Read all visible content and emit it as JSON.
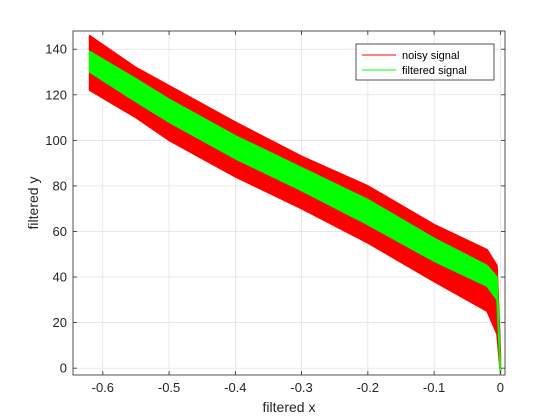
{
  "chart_data": {
    "type": "line",
    "title": "",
    "xlabel": "filtered x",
    "ylabel": "filtered y",
    "xlim": [
      -0.645,
      0.007
    ],
    "ylim": [
      -3,
      148
    ],
    "xticks": [
      -0.6,
      -0.5,
      -0.4,
      -0.3,
      -0.2,
      -0.1,
      0
    ],
    "xtick_labels": [
      "-0.6",
      "-0.5",
      "-0.4",
      "-0.3",
      "-0.2",
      "-0.1",
      "0"
    ],
    "yticks": [
      0,
      20,
      40,
      60,
      80,
      100,
      120,
      140
    ],
    "ytick_labels": [
      "0",
      "20",
      "40",
      "60",
      "80",
      "100",
      "120",
      "140"
    ],
    "grid": true,
    "legend_position": "top-right",
    "series": [
      {
        "name": "noisy signal",
        "color": "#ff0000",
        "band": "upper/lower envelope",
        "x": [
          -0.62,
          -0.55,
          -0.5,
          -0.4,
          -0.3,
          -0.2,
          -0.1,
          -0.02,
          -0.005,
          0.0
        ],
        "upper": [
          146,
          132,
          124,
          108,
          93,
          80,
          63,
          52,
          45,
          6
        ],
        "lower": [
          122,
          110,
          100,
          84,
          70,
          55,
          38,
          25,
          15,
          -2
        ]
      },
      {
        "name": "filtered signal",
        "color": "#00ff00",
        "band": "upper/lower envelope",
        "x": [
          -0.62,
          -0.55,
          -0.5,
          -0.4,
          -0.3,
          -0.2,
          -0.1,
          -0.02,
          -0.005,
          0.0
        ],
        "upper": [
          139,
          127,
          118,
          102,
          88,
          74,
          57,
          45,
          40,
          0
        ],
        "lower": [
          130,
          117,
          108,
          92,
          78,
          63,
          47,
          36,
          30,
          -2
        ]
      }
    ]
  }
}
